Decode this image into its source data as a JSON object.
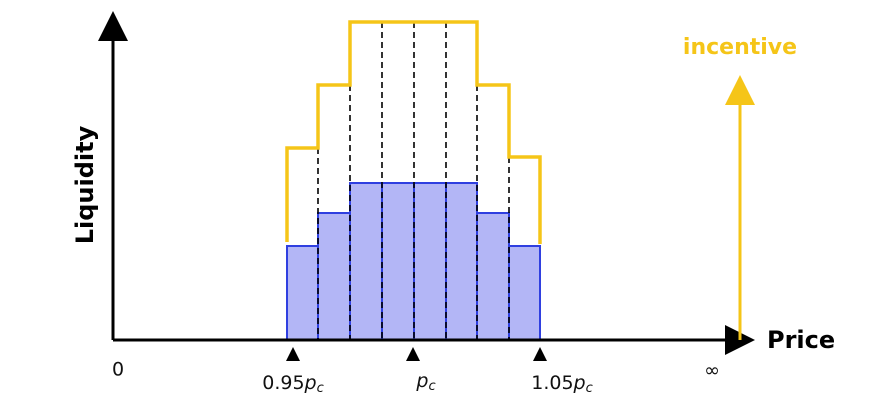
{
  "axes": {
    "y_label": "Liquidity",
    "x_label": "Price",
    "incentive_label": "incentive"
  },
  "ticks": [
    {
      "text": "0"
    },
    {
      "prefix": "0.95",
      "symbol": "p",
      "subscript": "c"
    },
    {
      "symbol": "p",
      "subscript": "c"
    },
    {
      "prefix": "1.05",
      "symbol": "p",
      "subscript": "c"
    },
    {
      "text": "∞"
    }
  ]
}
